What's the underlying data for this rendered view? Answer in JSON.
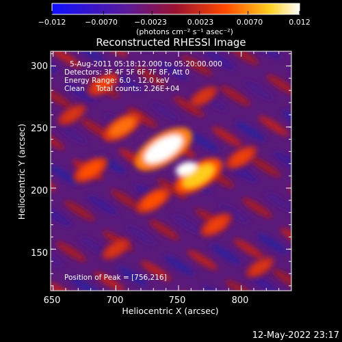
{
  "chart_data": {
    "type": "heatmap",
    "title": "Reconstructed RHESSI Image",
    "xlabel": "Heliocentric X (arcsec)",
    "ylabel": "Heliocentric Y (arcsec)",
    "xlim": [
      648,
      840
    ],
    "ylim": [
      116,
      312
    ],
    "x_ticks": [
      "650",
      "700",
      "750",
      "800"
    ],
    "y_ticks": [
      "150",
      "200",
      "250",
      "300"
    ],
    "colorbar": {
      "range": [
        -0.012,
        0.012
      ],
      "tick_labels": [
        "−0.012",
        "−0.0070",
        "−0.0023",
        "0.0023",
        "0.0070",
        "0.012"
      ],
      "unit_label": "(photons cm⁻² s⁻¹ asec⁻²)",
      "colors": [
        "#1a1aff",
        "#6a1a8a",
        "#b01818",
        "#ff6a00",
        "#ffff30",
        "#ffffff"
      ]
    },
    "annotations": [
      "5-Aug-2011 05:18:12.000 to 05:20:00.000",
      "Detectors: 3F 4F 5F 6F 7F 8F, Att 0",
      "Energy Range: 6.0 - 12.0 keV",
      "Clean     Total counts: 2.26E+04"
    ],
    "peak_label": "Position of Peak = [756,216]",
    "peak": {
      "x": 756,
      "y": 216,
      "value": 0.012
    },
    "sources": [
      {
        "x": 738,
        "y": 232,
        "value": 0.012
      },
      {
        "x": 766,
        "y": 210,
        "value": 0.009
      },
      {
        "x": 705,
        "y": 250,
        "value": 0.006
      },
      {
        "x": 730,
        "y": 190,
        "value": 0.005
      },
      {
        "x": 680,
        "y": 215,
        "value": 0.005
      },
      {
        "x": 800,
        "y": 225,
        "value": 0.004
      },
      {
        "x": 780,
        "y": 170,
        "value": 0.004
      },
      {
        "x": 700,
        "y": 150,
        "value": 0.003
      },
      {
        "x": 690,
        "y": 285,
        "value": 0.004
      },
      {
        "x": 770,
        "y": 275,
        "value": 0.003
      },
      {
        "x": 815,
        "y": 135,
        "value": 0.003
      },
      {
        "x": 665,
        "y": 260,
        "value": 0.003
      }
    ],
    "grid": false
  },
  "footer": {
    "timestamp": "12-May-2022 23:17"
  }
}
